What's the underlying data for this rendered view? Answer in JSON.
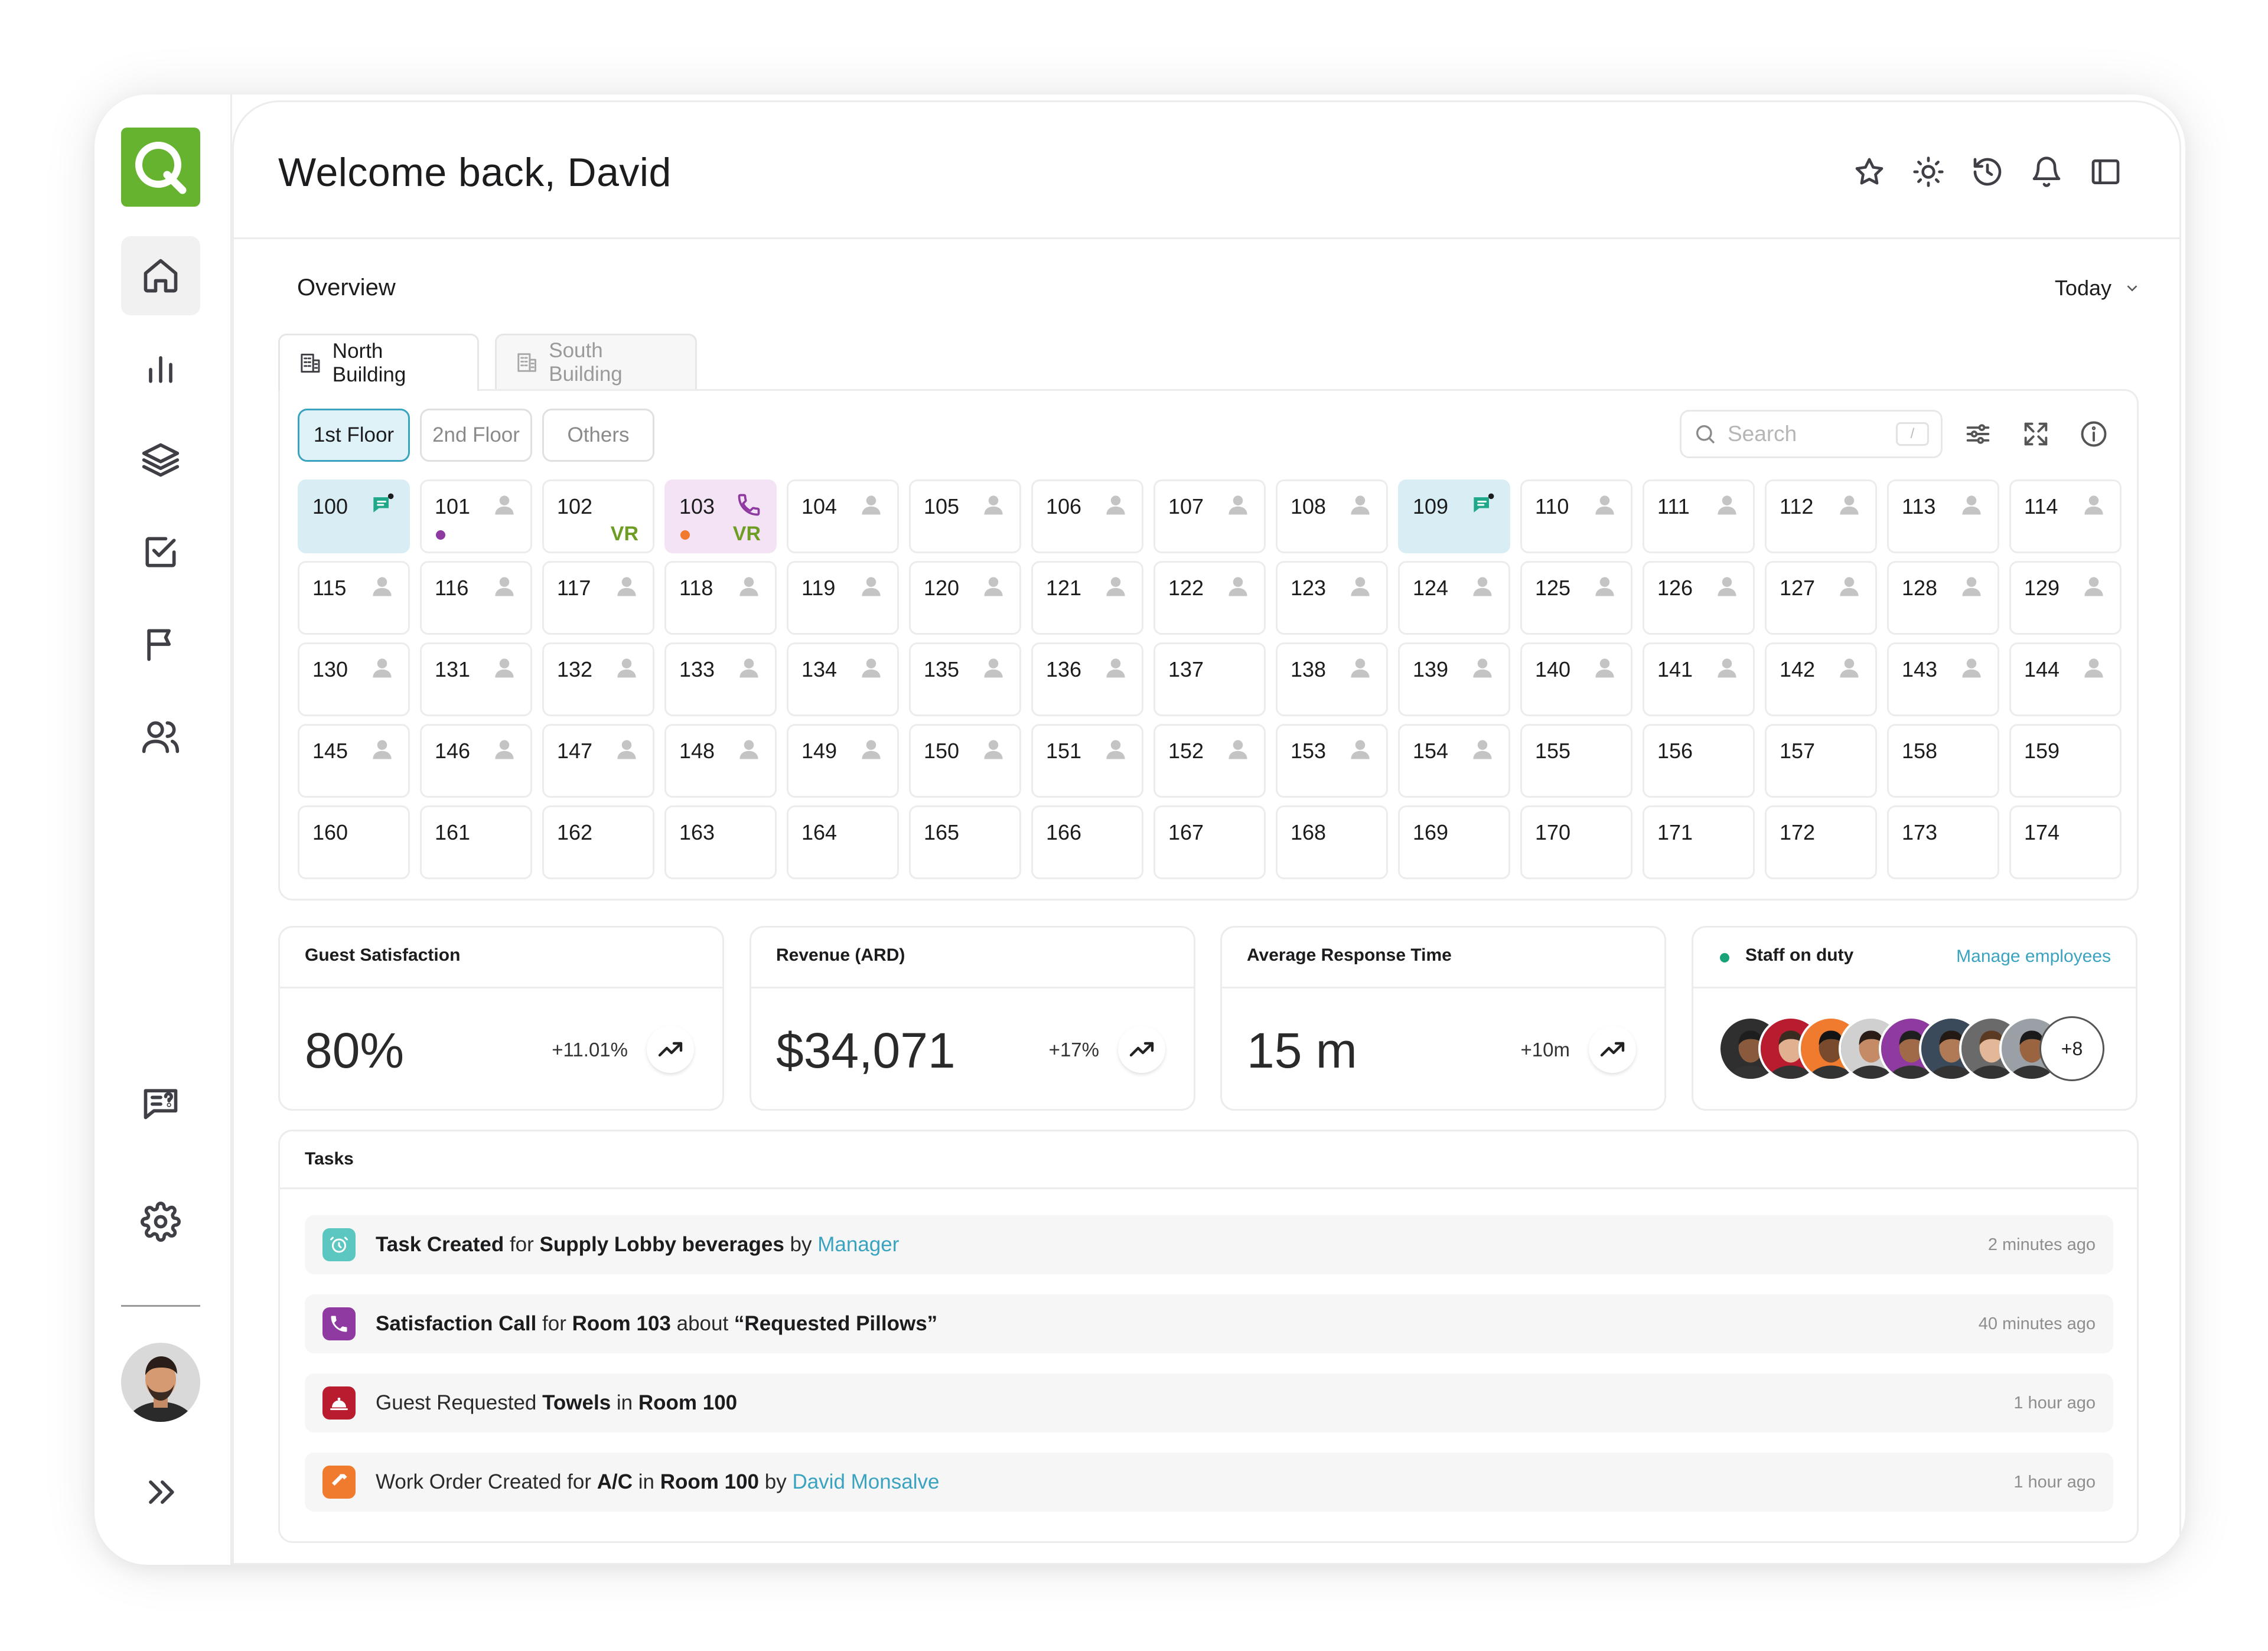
{
  "header": {
    "welcome": "Welcome back, David"
  },
  "overview": {
    "title": "Overview",
    "period": "Today"
  },
  "buildings": [
    {
      "label": "North Building",
      "active": true
    },
    {
      "label": "South Building",
      "active": false
    }
  ],
  "floors": [
    {
      "label": "1st Floor",
      "active": true
    },
    {
      "label": "2nd Floor",
      "active": false
    },
    {
      "label": "Others",
      "active": false
    }
  ],
  "search": {
    "placeholder": "Search",
    "shortcut": "/"
  },
  "rooms": [
    {
      "num": "100",
      "state": "teal",
      "icon": "chat"
    },
    {
      "num": "101",
      "icon": "person",
      "dot": "#8e3aa0"
    },
    {
      "num": "102",
      "vr": "VR"
    },
    {
      "num": "103",
      "state": "purple",
      "icon": "phone",
      "dot": "#f07b2e",
      "vr": "VR"
    },
    {
      "num": "104",
      "icon": "person"
    },
    {
      "num": "105",
      "icon": "person"
    },
    {
      "num": "106",
      "icon": "person"
    },
    {
      "num": "107",
      "icon": "person"
    },
    {
      "num": "108",
      "icon": "person"
    },
    {
      "num": "109",
      "state": "teal",
      "icon": "chat"
    },
    {
      "num": "110",
      "icon": "person"
    },
    {
      "num": "111",
      "icon": "person"
    },
    {
      "num": "112",
      "icon": "person"
    },
    {
      "num": "113",
      "icon": "person"
    },
    {
      "num": "114",
      "icon": "person"
    },
    {
      "num": "115",
      "icon": "person"
    },
    {
      "num": "116",
      "icon": "person"
    },
    {
      "num": "117",
      "icon": "person"
    },
    {
      "num": "118",
      "icon": "person"
    },
    {
      "num": "119",
      "icon": "person"
    },
    {
      "num": "120",
      "icon": "person"
    },
    {
      "num": "121",
      "icon": "person"
    },
    {
      "num": "122",
      "icon": "person"
    },
    {
      "num": "123",
      "icon": "person"
    },
    {
      "num": "124",
      "icon": "person"
    },
    {
      "num": "125",
      "icon": "person"
    },
    {
      "num": "126",
      "icon": "person"
    },
    {
      "num": "127",
      "icon": "person"
    },
    {
      "num": "128",
      "icon": "person"
    },
    {
      "num": "129",
      "icon": "person"
    },
    {
      "num": "130",
      "icon": "person"
    },
    {
      "num": "131",
      "icon": "person"
    },
    {
      "num": "132",
      "icon": "person"
    },
    {
      "num": "133",
      "icon": "person"
    },
    {
      "num": "134",
      "icon": "person"
    },
    {
      "num": "135",
      "icon": "person"
    },
    {
      "num": "136",
      "icon": "person"
    },
    {
      "num": "137"
    },
    {
      "num": "138",
      "icon": "person"
    },
    {
      "num": "139",
      "icon": "person"
    },
    {
      "num": "140",
      "icon": "person"
    },
    {
      "num": "141",
      "icon": "person"
    },
    {
      "num": "142",
      "icon": "person"
    },
    {
      "num": "143",
      "icon": "person"
    },
    {
      "num": "144",
      "icon": "person"
    },
    {
      "num": "145",
      "icon": "person"
    },
    {
      "num": "146",
      "icon": "person"
    },
    {
      "num": "147",
      "icon": "person"
    },
    {
      "num": "148",
      "icon": "person"
    },
    {
      "num": "149",
      "icon": "person"
    },
    {
      "num": "150",
      "icon": "person"
    },
    {
      "num": "151",
      "icon": "person"
    },
    {
      "num": "152",
      "icon": "person"
    },
    {
      "num": "153",
      "icon": "person"
    },
    {
      "num": "154",
      "icon": "person"
    },
    {
      "num": "155"
    },
    {
      "num": "156"
    },
    {
      "num": "157"
    },
    {
      "num": "158"
    },
    {
      "num": "159"
    },
    {
      "num": "160"
    },
    {
      "num": "161"
    },
    {
      "num": "162"
    },
    {
      "num": "163"
    },
    {
      "num": "164"
    },
    {
      "num": "165"
    },
    {
      "num": "166"
    },
    {
      "num": "167"
    },
    {
      "num": "168"
    },
    {
      "num": "169"
    },
    {
      "num": "170"
    },
    {
      "num": "171"
    },
    {
      "num": "172"
    },
    {
      "num": "173"
    },
    {
      "num": "174"
    }
  ],
  "stats": {
    "satisfaction": {
      "title": "Guest Satisfaction",
      "value": "80%",
      "delta": "+11.01%"
    },
    "revenue": {
      "title": "Revenue (ARD)",
      "value": "$34,071",
      "delta": "+17%"
    },
    "response": {
      "title": "Average Response Time",
      "value": "15 m",
      "delta": "+10m"
    },
    "staff": {
      "title": "Staff on duty",
      "manage": "Manage employees",
      "more": "+8"
    }
  },
  "tasks": {
    "title": "Tasks",
    "items": [
      {
        "icon": "alarm-icon",
        "color": "#5cc7c0",
        "parts": [
          "Task Created",
          " for ",
          "Supply Lobby beverages",
          " by ",
          "Manager"
        ],
        "time": "2 minutes ago"
      },
      {
        "icon": "phone-icon",
        "color": "#8e3aa0",
        "parts": [
          "Satisfaction Call",
          " for ",
          "Room 103",
          " about ",
          "“Requested Pillows”"
        ],
        "time": "40 minutes ago"
      },
      {
        "icon": "bell-icon",
        "color": "#b91c2e",
        "parts": [
          "Guest Requested ",
          "Towels",
          " in ",
          "Room 100"
        ],
        "time": "1 hour ago"
      },
      {
        "icon": "hammer-icon",
        "color": "#f07b2e",
        "parts": [
          "Work Order Created for ",
          "A/C",
          " in ",
          "Room 100",
          " by ",
          "David Monsalve"
        ],
        "time": "1 hour ago"
      }
    ]
  }
}
